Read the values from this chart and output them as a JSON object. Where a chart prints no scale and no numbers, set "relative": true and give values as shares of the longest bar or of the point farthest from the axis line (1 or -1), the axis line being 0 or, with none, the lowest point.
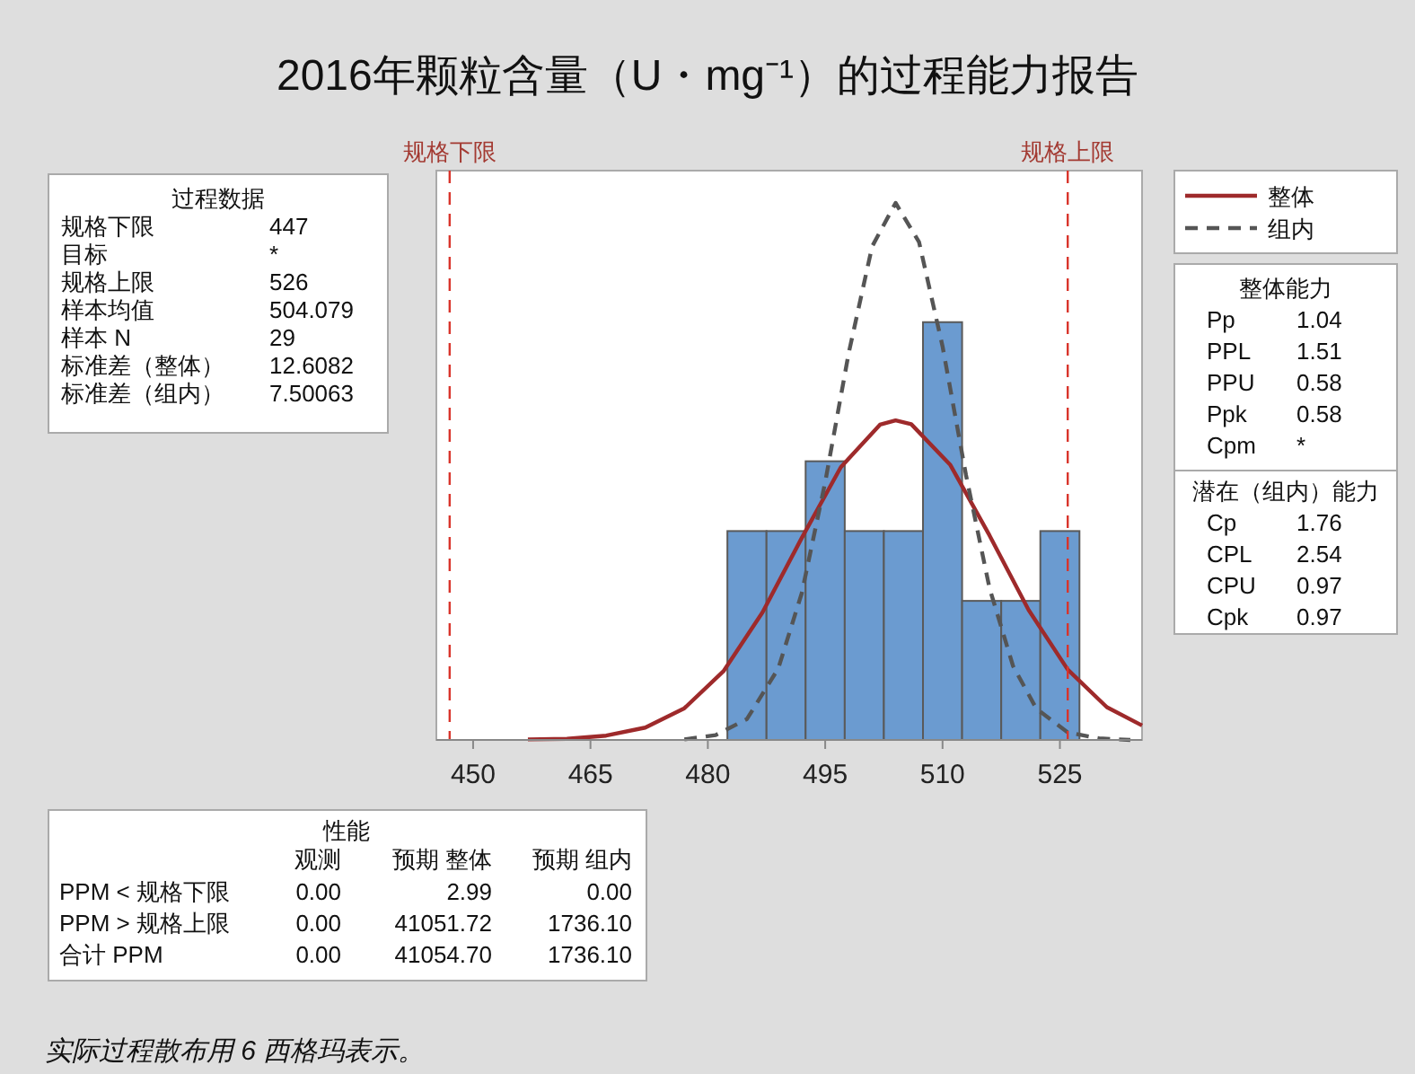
{
  "chart_data": [
    {
      "type": "histogram",
      "title": "2016年颗粒含量（U・mg⁻¹）的过程能力报告",
      "relative": true,
      "bins": [
        482.5,
        487.5,
        492.5,
        497.5,
        502.5,
        507.5,
        512.5,
        517.5,
        522.5,
        527.5
      ],
      "values": [
        0.389,
        0.389,
        0.519,
        0.389,
        0.389,
        0.778,
        0.259,
        0.259,
        0.389
      ],
      "color": "#6b9bd0",
      "xlim": [
        445.3,
        535.5
      ],
      "xticks": [
        450,
        465,
        480,
        495,
        510,
        525
      ],
      "legend": "top right",
      "series": [
        {
          "name": "整体",
          "type": "line",
          "color": "#9e2a2b",
          "line_style": "solid",
          "x": [
            457,
            462,
            467,
            472,
            477,
            482,
            487,
            492,
            497,
            502,
            504,
            506,
            511,
            516,
            521,
            526,
            531,
            535.5
          ],
          "values": [
            0.001,
            0.002,
            0.008,
            0.023,
            0.059,
            0.128,
            0.238,
            0.376,
            0.508,
            0.587,
            0.595,
            0.588,
            0.512,
            0.381,
            0.242,
            0.131,
            0.061,
            0.027
          ]
        },
        {
          "name": "组内",
          "type": "line",
          "color": "#555555",
          "line_style": "dashed",
          "x": [
            477,
            481,
            485,
            489,
            492,
            495,
            498,
            501,
            504,
            507,
            510,
            513,
            516,
            519,
            522,
            526,
            530,
            534
          ],
          "values": [
            0.001,
            0.009,
            0.039,
            0.133,
            0.273,
            0.48,
            0.72,
            0.919,
            1.0,
            0.927,
            0.733,
            0.493,
            0.283,
            0.138,
            0.058,
            0.014,
            0.003,
            0.0
          ]
        }
      ],
      "ref_lines": [
        {
          "axis": "x",
          "value": 447,
          "label": "规格下限",
          "color": "#d9342b",
          "line_style": "dashed"
        },
        {
          "axis": "x",
          "value": 526,
          "label": "规格上限",
          "color": "#d9342b",
          "line_style": "dashed"
        }
      ],
      "annotations": [
        "实际过程散布用 6 西格玛表示。"
      ]
    },
    {
      "type": "other",
      "title": "过程数据",
      "annotations": [
        "规格下限",
        "447",
        "目标",
        "*",
        "规格上限",
        "526",
        "样本均值",
        "504.079",
        "样本 N",
        "29",
        "标准差（整体）",
        "12.6082",
        "标准差（组内）",
        "7.50063"
      ]
    },
    {
      "type": "other",
      "title": "整体能力",
      "annotations": [
        "Pp",
        "1.04",
        "PPL",
        "1.51",
        "PPU",
        "0.58",
        "Ppk",
        "0.58",
        "Cpm",
        "*"
      ]
    },
    {
      "type": "other",
      "title": "潜在（组内）能力",
      "annotations": [
        "Cp",
        "1.76",
        "CPL",
        "2.54",
        "CPU",
        "0.97",
        "Cpk",
        "0.97"
      ]
    },
    {
      "type": "other",
      "title": "性能",
      "categories": [
        "观测",
        "预期 整体",
        "预期 组内"
      ],
      "annotations": [
        "PPM < 规格下限",
        "0.00",
        "2.99",
        "0.00",
        "PPM > 规格上限",
        "0.00",
        "41051.72",
        "1736.10",
        "合计 PPM",
        "0.00",
        "41054.70",
        "1736.10"
      ]
    }
  ]
}
